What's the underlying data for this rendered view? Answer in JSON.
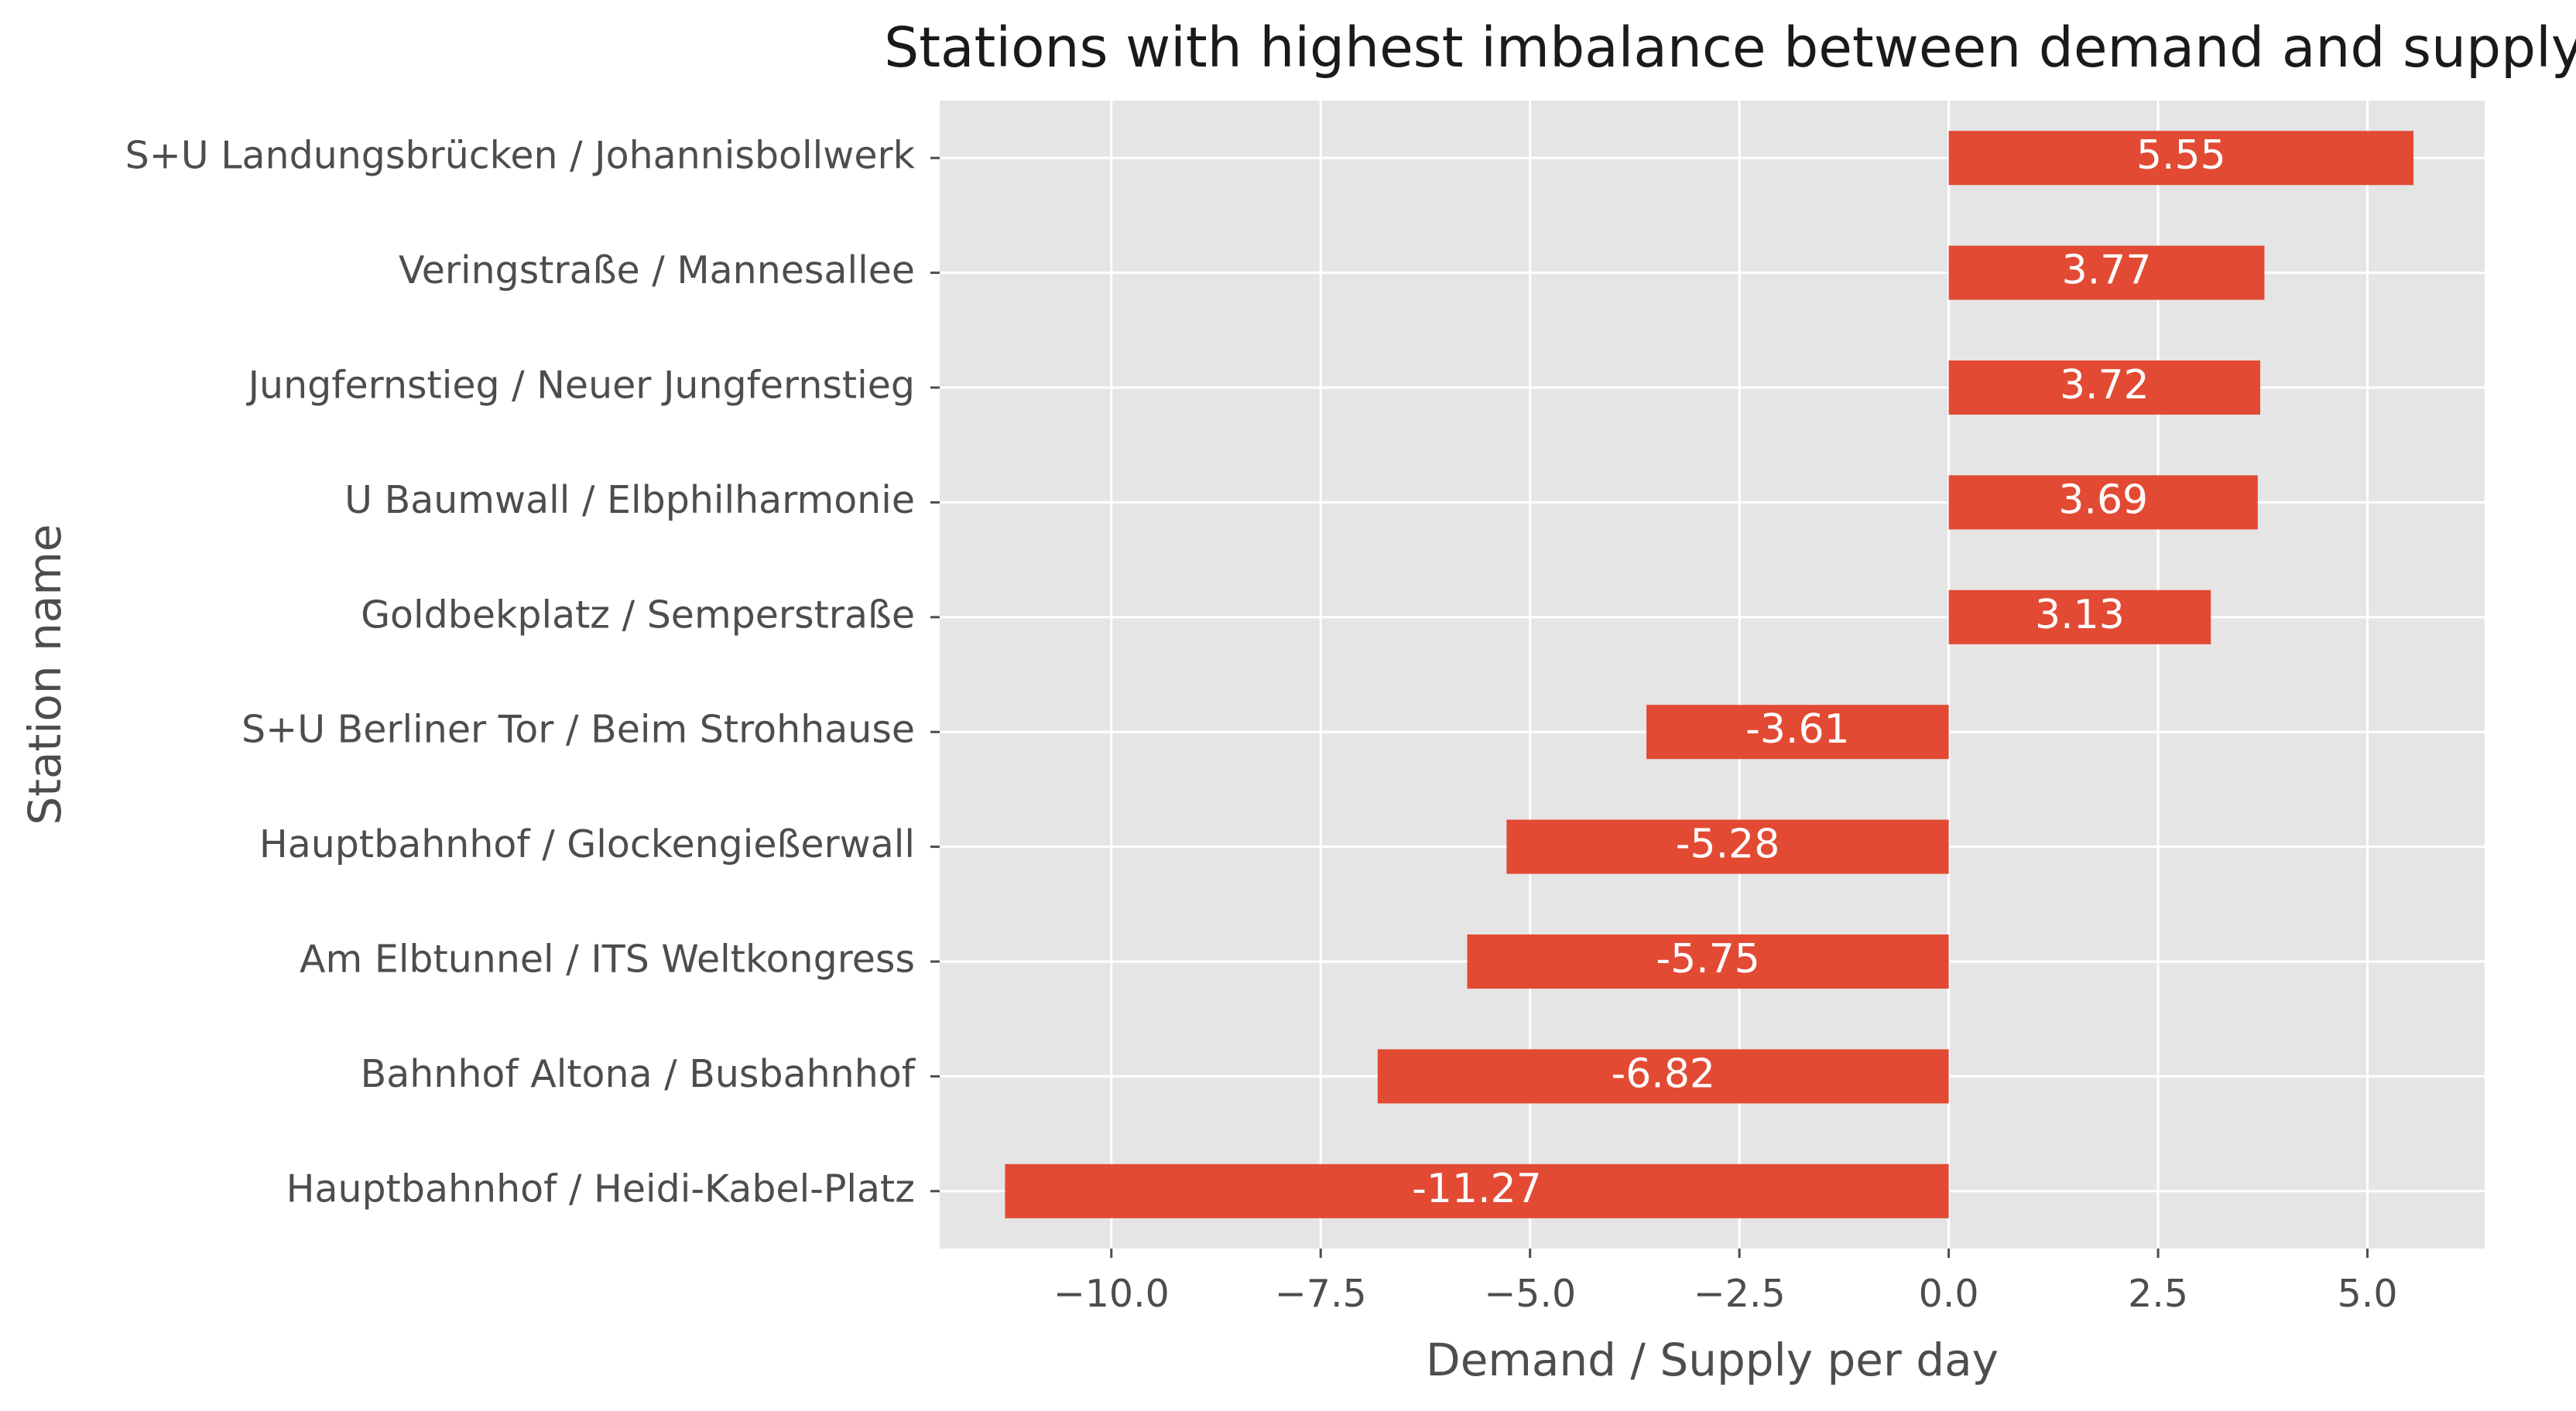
{
  "chart_data": {
    "type": "bar",
    "orientation": "horizontal",
    "title": "Stations with highest imbalance between demand and supply",
    "xlabel": "Demand / Supply per day",
    "ylabel": "Station name",
    "categories": [
      "S+U Landungsbrücken / Johannisbollwerk",
      "Veringstraße / Mannesallee",
      "Jungfernstieg / Neuer Jungfernstieg",
      "U Baumwall / Elbphilharmonie",
      "Goldbekplatz / Semperstraße",
      "S+U Berliner Tor / Beim Strohhause",
      "Hauptbahnhof / Glockengießerwall",
      "Am Elbtunnel / ITS Weltkongress",
      "Bahnhof Altona / Busbahnhof",
      "Hauptbahnhof / Heidi-Kabel-Platz"
    ],
    "values": [
      5.55,
      3.77,
      3.72,
      3.69,
      3.13,
      -3.61,
      -5.28,
      -5.75,
      -6.82,
      -11.27
    ],
    "data_labels": [
      "5.55",
      "3.77",
      "3.72",
      "3.69",
      "3.13",
      "-3.61",
      "-5.28",
      "-5.75",
      "-6.82",
      "-11.27"
    ],
    "xticks": [
      -10.0,
      -7.5,
      -5.0,
      -2.5,
      0.0,
      2.5,
      5.0
    ],
    "xtick_labels": [
      "−10.0",
      "−7.5",
      "−5.0",
      "−2.5",
      "0.0",
      "2.5",
      "5.0"
    ],
    "xlim": [
      -12.05,
      6.4
    ],
    "grid": true,
    "style": "ggplot",
    "colors": {
      "bar": "#e24a33",
      "panel_background": "#e5e5e5",
      "grid": "#ffffff",
      "text": "#4d4d4d",
      "title": "#1a1a1a",
      "bar_label": "#ffffff"
    }
  }
}
